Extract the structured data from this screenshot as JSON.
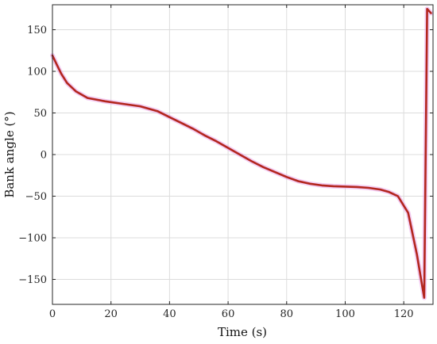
{
  "chart_data": {
    "type": "line",
    "title": "",
    "xlabel": "Time (s)",
    "ylabel": "Bank angle (°)",
    "xlim": [
      0,
      130
    ],
    "ylim": [
      -180,
      180
    ],
    "xticks": [
      0,
      20,
      40,
      60,
      80,
      100,
      120
    ],
    "yticks": [
      -150,
      -100,
      -50,
      0,
      50,
      100,
      150
    ],
    "grid": true,
    "colors": {
      "line": "#b3261e",
      "halo": "#e9a6e9",
      "grid": "#dcdcdc",
      "axis": "#262626"
    },
    "series": [
      {
        "x": [
          0,
          1.5,
          3,
          5,
          8,
          12,
          18,
          24,
          30,
          36,
          40,
          44,
          48,
          52,
          56,
          60,
          64,
          68,
          72,
          76,
          80,
          84,
          88,
          92,
          96,
          100,
          104,
          108,
          112,
          115,
          118,
          121.5,
          124.5,
          127,
          128,
          129.3
        ],
        "y": [
          119,
          108,
          97,
          86,
          76,
          68,
          64,
          61,
          58,
          52,
          45,
          38,
          31,
          23,
          16,
          8,
          0,
          -8,
          -15,
          -21,
          -27,
          -32,
          -35,
          -37,
          -38,
          -38.5,
          -39,
          -40,
          -42,
          -45,
          -50,
          -70,
          -120,
          -172,
          175,
          170
        ]
      }
    ]
  }
}
